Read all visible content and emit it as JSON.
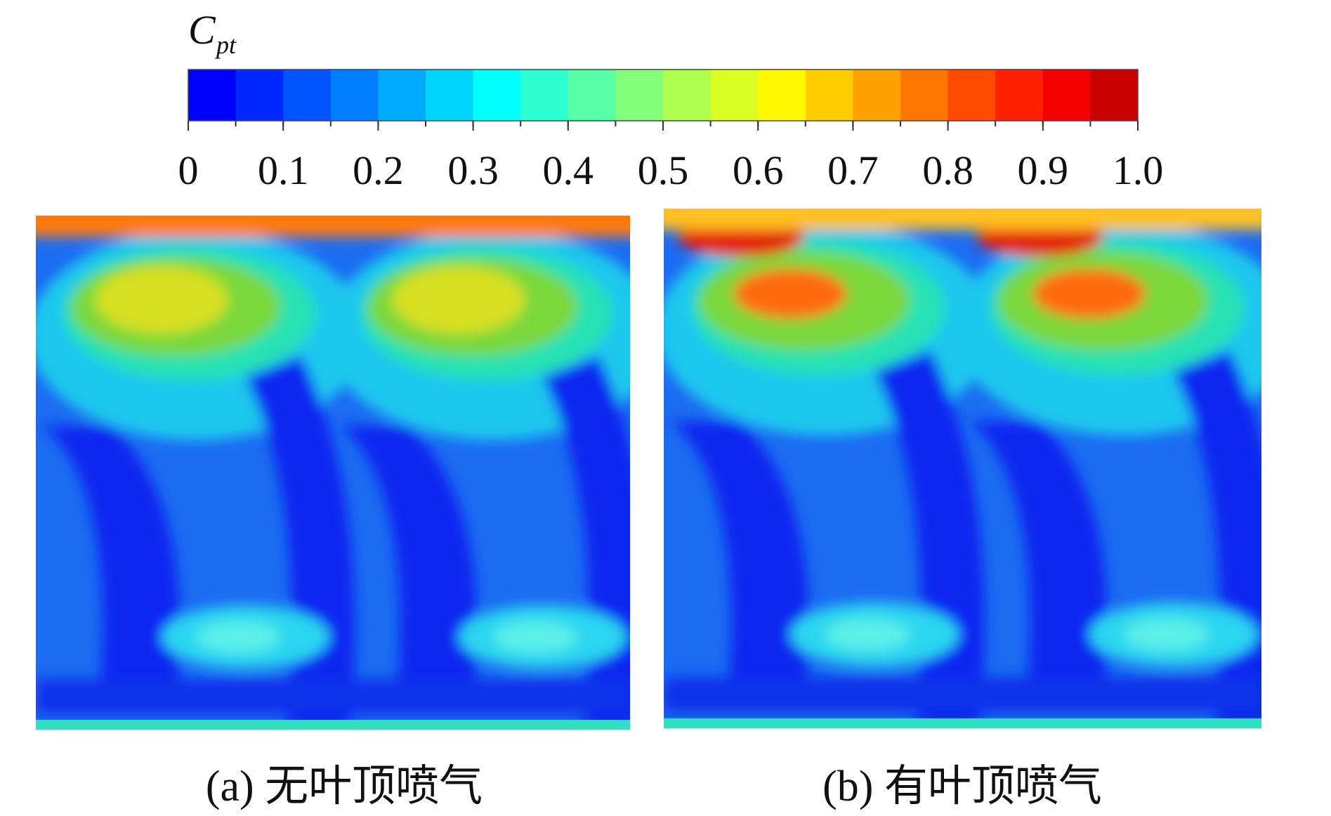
{
  "colorbar": {
    "label": "C",
    "label_sub": "pt",
    "ticks": [
      "0",
      "0.1",
      "0.2",
      "0.3",
      "0.4",
      "0.5",
      "0.6",
      "0.7",
      "0.8",
      "0.9",
      "1.0"
    ]
  },
  "panels": [
    {
      "caption": "(a) 无叶顶喷气"
    },
    {
      "caption": "(b) 有叶顶喷气"
    }
  ]
}
